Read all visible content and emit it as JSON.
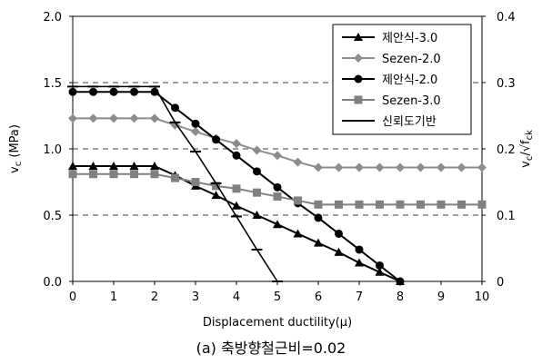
{
  "chart_data": {
    "type": "line",
    "xlabel": "Displacement ductility(μ)",
    "ylabel": "v_c (MPa)",
    "y2label": "v_c/√f_ck",
    "xlim": [
      0,
      10
    ],
    "ylim": [
      0,
      2.0
    ],
    "y2lim": [
      0,
      0.4
    ],
    "x_ticks": [
      "0",
      "1",
      "2",
      "3",
      "4",
      "5",
      "6",
      "7",
      "8",
      "9",
      "10"
    ],
    "y_ticks": [
      "0.0",
      "0.5",
      "1.0",
      "1.5",
      "2.0"
    ],
    "y2_ticks": [
      "0",
      "0.1",
      "0.2",
      "0.3",
      "0.4"
    ],
    "grid": "horizontal dashed",
    "legend_position": "top-right",
    "series": [
      {
        "name": "제안식-3.0",
        "marker": "triangle",
        "color": "#000000",
        "x": [
          0,
          0.5,
          1,
          1.5,
          2,
          2.5,
          3,
          3.5,
          4,
          4.5,
          5,
          5.5,
          6,
          6.5,
          7,
          7.5,
          8
        ],
        "y": [
          0.87,
          0.87,
          0.87,
          0.87,
          0.87,
          0.8,
          0.72,
          0.65,
          0.57,
          0.5,
          0.43,
          0.36,
          0.29,
          0.22,
          0.14,
          0.07,
          0.0
        ]
      },
      {
        "name": "Sezen-2.0",
        "marker": "diamond",
        "color": "#8c8c8c",
        "x": [
          0,
          0.5,
          1,
          1.5,
          2,
          2.5,
          3,
          3.5,
          4,
          4.5,
          5,
          5.5,
          6,
          6.5,
          7,
          7.5,
          8,
          8.5,
          9,
          9.5,
          10
        ],
        "y": [
          1.23,
          1.23,
          1.23,
          1.23,
          1.23,
          1.18,
          1.13,
          1.08,
          1.04,
          0.99,
          0.95,
          0.9,
          0.86,
          0.86,
          0.86,
          0.86,
          0.86,
          0.86,
          0.86,
          0.86,
          0.86
        ]
      },
      {
        "name": "제안식-2.0",
        "marker": "circle",
        "color": "#000000",
        "x": [
          0,
          0.5,
          1,
          1.5,
          2,
          2.5,
          3,
          3.5,
          4,
          4.5,
          5,
          5.5,
          6,
          6.5,
          7,
          7.5,
          8
        ],
        "y": [
          1.43,
          1.43,
          1.43,
          1.43,
          1.43,
          1.31,
          1.19,
          1.07,
          0.95,
          0.83,
          0.71,
          0.59,
          0.48,
          0.36,
          0.24,
          0.12,
          0.0
        ]
      },
      {
        "name": "Sezen-3.0",
        "marker": "square",
        "color": "#808080",
        "x": [
          0,
          0.5,
          1,
          1.5,
          2,
          2.5,
          3,
          3.5,
          4,
          4.5,
          5,
          5.5,
          6,
          6.5,
          7,
          7.5,
          8,
          8.5,
          9,
          9.5,
          10
        ],
        "y": [
          0.81,
          0.81,
          0.81,
          0.81,
          0.81,
          0.78,
          0.75,
          0.72,
          0.7,
          0.67,
          0.64,
          0.61,
          0.58,
          0.58,
          0.58,
          0.58,
          0.58,
          0.58,
          0.58,
          0.58,
          0.58
        ]
      },
      {
        "name": "신뢰도기반",
        "marker": "dash",
        "color": "#000000",
        "x": [
          0,
          0.5,
          1,
          1.5,
          2,
          2.5,
          3,
          3.5,
          4,
          4.5,
          5
        ],
        "y": [
          1.47,
          1.47,
          1.47,
          1.47,
          1.47,
          1.2,
          0.98,
          0.74,
          0.49,
          0.24,
          0.0
        ]
      }
    ]
  },
  "caption": "(a) 축방향철근비=0.02"
}
